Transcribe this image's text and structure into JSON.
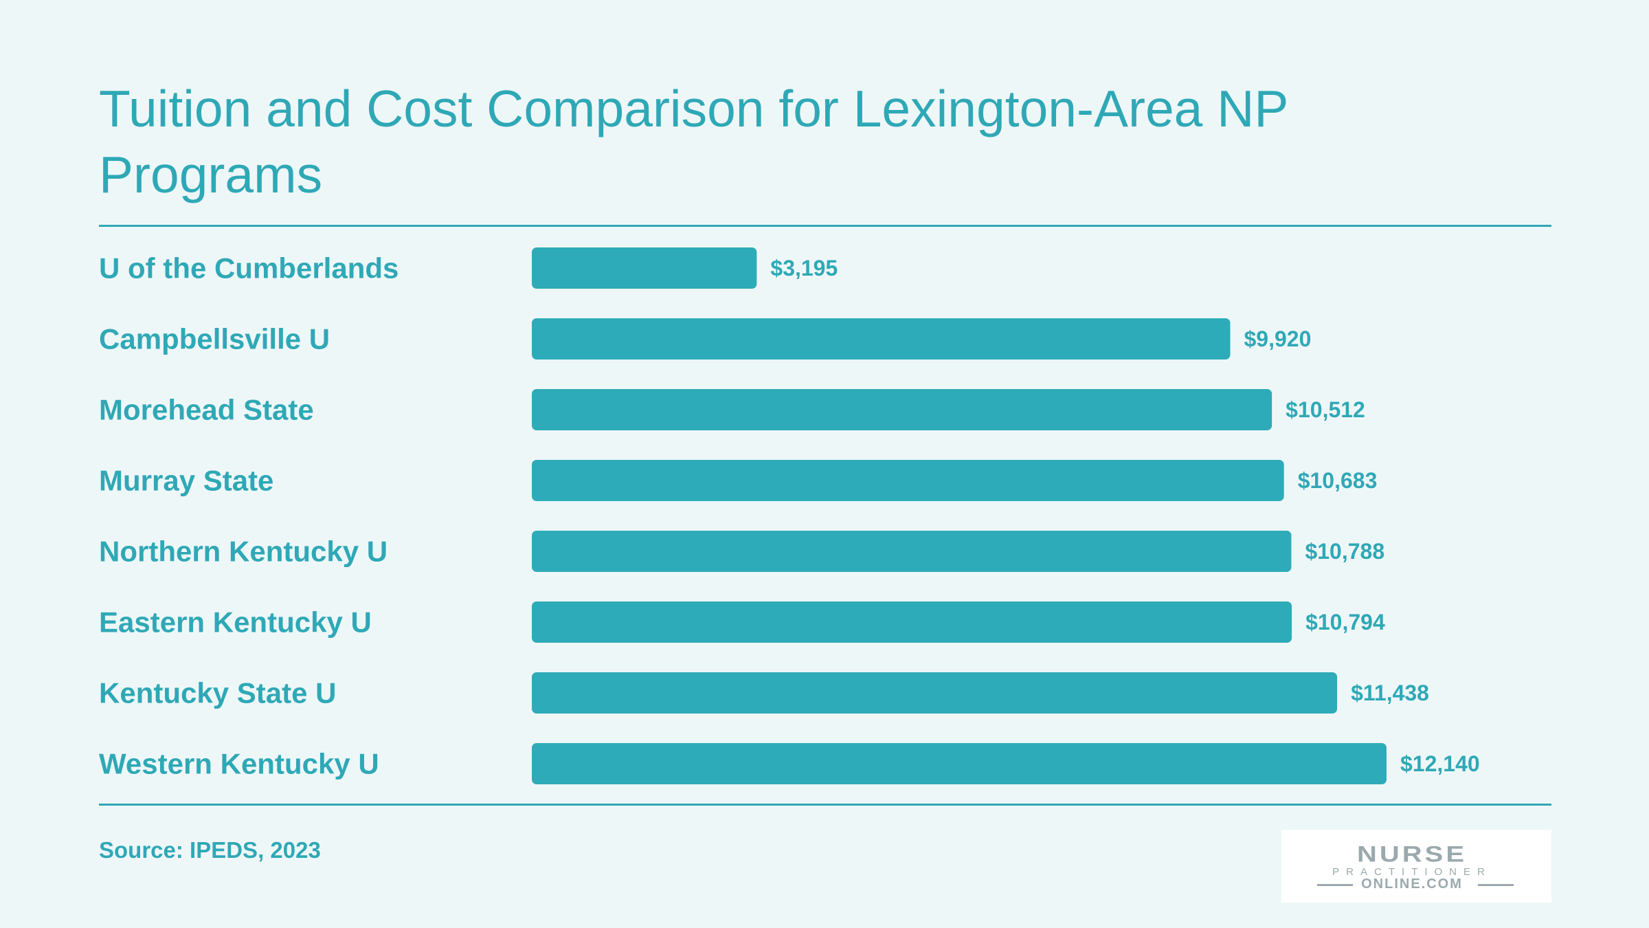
{
  "title": "Tuition and Cost Comparison for Lexington-Area NP Programs",
  "source": "Source: IPEDS, 2023",
  "logo": {
    "line1": "NURSE",
    "line2": "PRACTITIONER",
    "line3": "ONLINE.COM"
  },
  "colors": {
    "background": "#eef7f8",
    "accent": "#2fa8b6",
    "bar": "#2eabb8",
    "logo_gray": "#9aa9ad"
  },
  "chart_data": {
    "type": "bar",
    "orientation": "horizontal",
    "categories": [
      "U of the Cumberlands",
      "Campbellsville U",
      "Morehead State",
      "Murray State",
      "Northern Kentucky U",
      "Eastern Kentucky U",
      "Kentucky State U",
      "Western Kentucky U"
    ],
    "values": [
      3195,
      9920,
      10512,
      10683,
      10788,
      10794,
      11438,
      12140
    ],
    "value_labels": [
      "$3,195",
      "$9,920",
      "$10,512",
      "$10,683",
      "$10,788",
      "$10,794",
      "$11,438",
      "$12,140"
    ],
    "xlim": [
      0,
      12140
    ],
    "grid": false,
    "legend": "none"
  }
}
